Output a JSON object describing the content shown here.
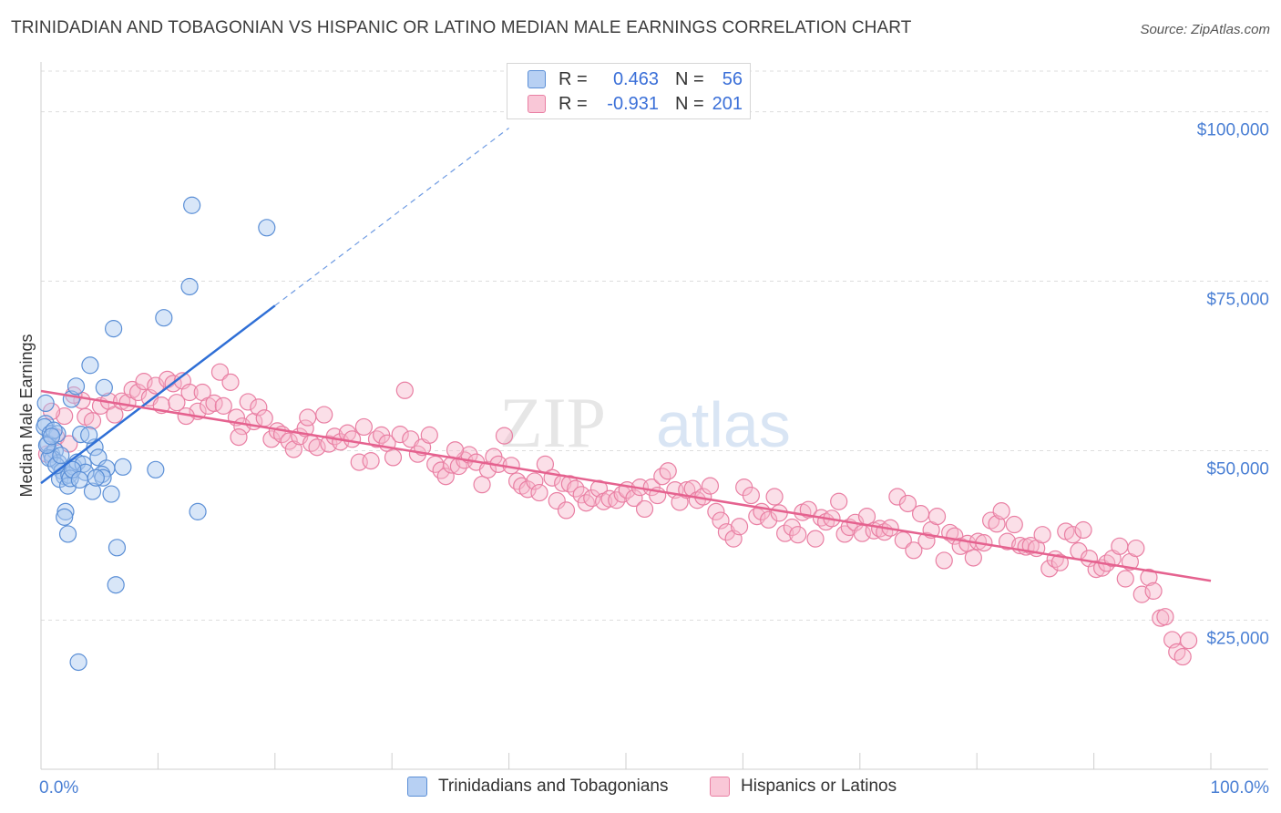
{
  "header": {
    "title": "TRINIDADIAN AND TOBAGONIAN VS HISPANIC OR LATINO MEDIAN MALE EARNINGS CORRELATION CHART",
    "source": "Source: ZipAtlas.com"
  },
  "watermark": {
    "zip": "ZIP",
    "atlas": "atlas"
  },
  "legend": {
    "rows": [
      {
        "r_label": "R =",
        "r_value": "0.463",
        "n_label": "N =",
        "n_value": "56"
      },
      {
        "r_label": "R =",
        "r_value": "-0.931",
        "n_label": "N =",
        "n_value": "201"
      }
    ]
  },
  "colors": {
    "blue_fill": "#a8c8f0",
    "blue_stroke": "#5b8fd6",
    "blue_line": "#2f6fd6",
    "pink_fill": "#f7b7cc",
    "pink_stroke": "#e97fa3",
    "pink_line": "#e5628f",
    "tick_label": "#4a7fd4",
    "grid": "#dddddd"
  },
  "chart_data": {
    "type": "scatter",
    "title": "TRINIDADIAN AND TOBAGONIAN VS HISPANIC OR LATINO MEDIAN MALE EARNINGS CORRELATION CHART",
    "xlabel": "",
    "ylabel": "Median Male Earnings",
    "xlim": [
      0,
      100
    ],
    "ylim": [
      3000,
      106000
    ],
    "x_tick_labels": [
      "0.0%",
      "100.0%"
    ],
    "y_ticks": [
      25000,
      50000,
      75000,
      100000
    ],
    "y_tick_labels": [
      "$25,000",
      "$50,000",
      "$75,000",
      "$100,000"
    ],
    "grid": true,
    "legend_position": "top-center",
    "series": [
      {
        "name": "Trinidadians and Tobagonians",
        "color": "#5b8fd6",
        "trend": {
          "x": [
            0,
            20
          ],
          "y": [
            45200,
            71400
          ],
          "dashed_to": [
            40,
            97600
          ]
        },
        "points": [
          [
            0.4,
            57.0
          ],
          [
            0.4,
            54.0
          ],
          [
            0.3,
            53.5
          ],
          [
            0.8,
            52.5
          ],
          [
            0.6,
            51.0
          ],
          [
            0.9,
            49.5
          ],
          [
            1.2,
            50.0
          ],
          [
            1.0,
            48.8
          ],
          [
            1.5,
            48.2
          ],
          [
            1.8,
            47.0
          ],
          [
            2.0,
            46.2
          ],
          [
            1.6,
            45.8
          ],
          [
            2.4,
            46.4
          ],
          [
            2.8,
            47.6
          ],
          [
            2.3,
            44.8
          ],
          [
            1.4,
            52.5
          ],
          [
            1.1,
            53.0
          ],
          [
            3.1,
            48.3
          ],
          [
            3.4,
            52.4
          ],
          [
            3.6,
            48.0
          ],
          [
            2.6,
            57.6
          ],
          [
            3.0,
            59.5
          ],
          [
            4.2,
            62.6
          ],
          [
            4.6,
            50.5
          ],
          [
            4.9,
            49.0
          ],
          [
            5.4,
            59.3
          ],
          [
            5.6,
            47.4
          ],
          [
            6.0,
            43.6
          ],
          [
            5.2,
            46.5
          ],
          [
            4.4,
            44.0
          ],
          [
            5.3,
            46.0
          ],
          [
            7.0,
            47.6
          ],
          [
            2.1,
            41.0
          ],
          [
            2.0,
            40.2
          ],
          [
            2.3,
            37.7
          ],
          [
            6.2,
            68.0
          ],
          [
            6.5,
            35.7
          ],
          [
            6.4,
            30.2
          ],
          [
            3.2,
            18.8
          ],
          [
            10.5,
            69.6
          ],
          [
            12.9,
            86.2
          ],
          [
            12.7,
            74.2
          ],
          [
            19.3,
            82.9
          ],
          [
            13.4,
            41.0
          ],
          [
            9.8,
            47.2
          ],
          [
            0.7,
            48.9
          ],
          [
            1.3,
            47.8
          ],
          [
            2.5,
            45.9
          ],
          [
            3.8,
            46.8
          ],
          [
            4.1,
            52.3
          ],
          [
            0.5,
            50.8
          ],
          [
            1.7,
            49.3
          ],
          [
            2.7,
            47.2
          ],
          [
            3.3,
            45.7
          ],
          [
            4.7,
            46.0
          ],
          [
            0.9,
            52.1
          ]
        ]
      },
      {
        "name": "Hispanics or Latinos",
        "color": "#e97fa3",
        "trend": {
          "x": [
            0,
            100
          ],
          "y": [
            58800,
            30800
          ]
        },
        "points": [
          [
            0.5,
            49.5
          ],
          [
            1.3,
            52.0
          ],
          [
            2.0,
            55.1
          ],
          [
            2.4,
            51.0
          ],
          [
            3.5,
            57.4
          ],
          [
            3.8,
            55.0
          ],
          [
            4.4,
            54.4
          ],
          [
            5.1,
            56.6
          ],
          [
            5.8,
            57.3
          ],
          [
            6.3,
            55.3
          ],
          [
            6.9,
            57.3
          ],
          [
            7.4,
            57.1
          ],
          [
            7.8,
            59.0
          ],
          [
            8.3,
            58.6
          ],
          [
            8.8,
            60.2
          ],
          [
            9.3,
            57.8
          ],
          [
            9.8,
            59.6
          ],
          [
            10.3,
            56.7
          ],
          [
            10.8,
            60.5
          ],
          [
            11.3,
            59.9
          ],
          [
            11.6,
            57.1
          ],
          [
            12.1,
            60.3
          ],
          [
            12.7,
            58.6
          ],
          [
            13.4,
            55.8
          ],
          [
            13.8,
            58.6
          ],
          [
            14.3,
            56.6
          ],
          [
            14.8,
            57.0
          ],
          [
            15.3,
            61.6
          ],
          [
            15.6,
            56.6
          ],
          [
            16.2,
            60.1
          ],
          [
            16.7,
            54.9
          ],
          [
            17.2,
            53.6
          ],
          [
            17.7,
            57.2
          ],
          [
            18.2,
            54.3
          ],
          [
            18.6,
            56.4
          ],
          [
            19.1,
            54.8
          ],
          [
            19.7,
            51.7
          ],
          [
            20.2,
            52.9
          ],
          [
            20.6,
            52.4
          ],
          [
            21.2,
            51.4
          ],
          [
            21.6,
            50.2
          ],
          [
            22.1,
            52.1
          ],
          [
            22.6,
            53.3
          ],
          [
            23.1,
            51.1
          ],
          [
            23.6,
            50.5
          ],
          [
            24.2,
            55.3
          ],
          [
            24.6,
            51.0
          ],
          [
            25.1,
            52.1
          ],
          [
            25.6,
            51.3
          ],
          [
            26.2,
            52.6
          ],
          [
            26.6,
            51.7
          ],
          [
            27.2,
            48.3
          ],
          [
            27.6,
            53.5
          ],
          [
            28.2,
            48.5
          ],
          [
            28.7,
            51.7
          ],
          [
            29.1,
            52.3
          ],
          [
            29.6,
            51.1
          ],
          [
            30.1,
            49.0
          ],
          [
            30.7,
            52.4
          ],
          [
            31.1,
            58.9
          ],
          [
            31.6,
            51.7
          ],
          [
            32.2,
            49.5
          ],
          [
            32.6,
            50.5
          ],
          [
            33.2,
            52.3
          ],
          [
            33.7,
            48.0
          ],
          [
            34.2,
            47.1
          ],
          [
            34.6,
            46.2
          ],
          [
            35.1,
            47.9
          ],
          [
            35.7,
            47.7
          ],
          [
            36.2,
            48.6
          ],
          [
            36.6,
            49.4
          ],
          [
            37.2,
            48.3
          ],
          [
            37.7,
            45.0
          ],
          [
            38.2,
            47.2
          ],
          [
            38.7,
            49.1
          ],
          [
            39.1,
            48.0
          ],
          [
            39.6,
            52.2
          ],
          [
            40.2,
            47.8
          ],
          [
            40.7,
            45.5
          ],
          [
            41.1,
            44.8
          ],
          [
            41.6,
            44.3
          ],
          [
            42.2,
            45.5
          ],
          [
            42.6,
            43.8
          ],
          [
            43.1,
            48.0
          ],
          [
            43.7,
            46.0
          ],
          [
            44.1,
            42.6
          ],
          [
            44.6,
            45.2
          ],
          [
            45.2,
            45.1
          ],
          [
            45.7,
            44.4
          ],
          [
            46.2,
            43.5
          ],
          [
            46.6,
            42.3
          ],
          [
            47.1,
            43.0
          ],
          [
            47.7,
            44.4
          ],
          [
            48.1,
            42.5
          ],
          [
            48.6,
            42.9
          ],
          [
            49.2,
            42.7
          ],
          [
            49.7,
            43.6
          ],
          [
            50.1,
            44.2
          ],
          [
            50.7,
            43.0
          ],
          [
            51.2,
            44.6
          ],
          [
            51.6,
            41.4
          ],
          [
            52.2,
            44.6
          ],
          [
            52.7,
            43.4
          ],
          [
            53.1,
            46.2
          ],
          [
            53.6,
            47.0
          ],
          [
            54.2,
            44.2
          ],
          [
            54.6,
            42.4
          ],
          [
            55.2,
            44.2
          ],
          [
            55.7,
            44.4
          ],
          [
            56.1,
            42.7
          ],
          [
            56.6,
            43.2
          ],
          [
            57.2,
            44.8
          ],
          [
            57.7,
            41.0
          ],
          [
            58.1,
            39.7
          ],
          [
            58.6,
            38.0
          ],
          [
            59.2,
            37.0
          ],
          [
            59.7,
            38.8
          ],
          [
            60.1,
            44.6
          ],
          [
            60.7,
            43.4
          ],
          [
            61.2,
            40.3
          ],
          [
            61.6,
            41.0
          ],
          [
            62.2,
            39.8
          ],
          [
            62.7,
            43.2
          ],
          [
            63.1,
            40.8
          ],
          [
            63.6,
            37.8
          ],
          [
            64.2,
            38.7
          ],
          [
            64.7,
            37.6
          ],
          [
            65.1,
            40.9
          ],
          [
            65.6,
            41.3
          ],
          [
            66.2,
            37.0
          ],
          [
            66.7,
            40.1
          ],
          [
            67.1,
            39.5
          ],
          [
            67.6,
            40.0
          ],
          [
            68.2,
            42.5
          ],
          [
            68.7,
            37.7
          ],
          [
            69.1,
            38.7
          ],
          [
            69.6,
            39.4
          ],
          [
            70.2,
            37.8
          ],
          [
            70.6,
            40.3
          ],
          [
            71.2,
            38.2
          ],
          [
            71.7,
            38.5
          ],
          [
            72.1,
            38.0
          ],
          [
            72.6,
            38.6
          ],
          [
            73.2,
            43.2
          ],
          [
            73.7,
            36.8
          ],
          [
            74.1,
            42.2
          ],
          [
            74.6,
            35.3
          ],
          [
            75.2,
            40.7
          ],
          [
            75.7,
            36.7
          ],
          [
            76.1,
            38.3
          ],
          [
            76.6,
            40.3
          ],
          [
            77.2,
            33.8
          ],
          [
            77.7,
            37.9
          ],
          [
            78.1,
            37.4
          ],
          [
            78.6,
            35.9
          ],
          [
            79.2,
            36.3
          ],
          [
            79.7,
            34.2
          ],
          [
            80.1,
            36.6
          ],
          [
            80.6,
            36.4
          ],
          [
            81.2,
            39.7
          ],
          [
            81.7,
            39.2
          ],
          [
            82.1,
            41.1
          ],
          [
            82.6,
            36.6
          ],
          [
            83.2,
            39.1
          ],
          [
            83.7,
            36.0
          ],
          [
            84.2,
            35.8
          ],
          [
            84.6,
            36.0
          ],
          [
            85.1,
            35.6
          ],
          [
            85.6,
            37.6
          ],
          [
            86.2,
            32.6
          ],
          [
            86.7,
            34.0
          ],
          [
            87.1,
            33.5
          ],
          [
            87.6,
            38.1
          ],
          [
            88.2,
            37.6
          ],
          [
            88.7,
            35.2
          ],
          [
            89.1,
            38.3
          ],
          [
            89.6,
            34.1
          ],
          [
            90.2,
            32.5
          ],
          [
            90.7,
            32.7
          ],
          [
            91.1,
            33.4
          ],
          [
            91.6,
            34.1
          ],
          [
            92.2,
            35.9
          ],
          [
            92.7,
            31.1
          ],
          [
            93.1,
            33.6
          ],
          [
            93.6,
            35.6
          ],
          [
            94.1,
            28.8
          ],
          [
            94.7,
            31.3
          ],
          [
            95.1,
            29.3
          ],
          [
            95.7,
            25.3
          ],
          [
            96.1,
            25.5
          ],
          [
            96.7,
            22.1
          ],
          [
            97.1,
            20.3
          ],
          [
            97.6,
            19.6
          ],
          [
            98.1,
            22.0
          ],
          [
            0.9,
            55.8
          ],
          [
            2.8,
            58.2
          ],
          [
            12.4,
            55.1
          ],
          [
            16.9,
            52.0
          ],
          [
            22.8,
            54.9
          ],
          [
            35.4,
            50.1
          ],
          [
            44.9,
            41.2
          ]
        ]
      }
    ]
  },
  "bottom_legend": {
    "items": [
      {
        "label": "Trinidadians and Tobagonians"
      },
      {
        "label": "Hispanics or Latinos"
      }
    ]
  }
}
